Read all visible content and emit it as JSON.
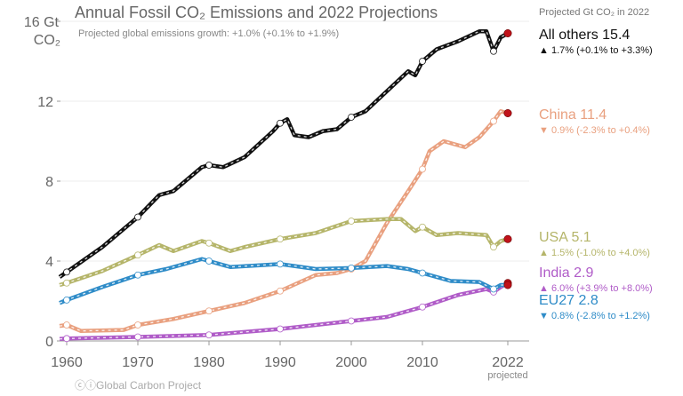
{
  "chart_data": {
    "type": "line",
    "title": "Annual Fossil CO₂ Emissions and 2022 Projections",
    "subtitle": "Projected global emissions growth: +1.0% (+0.1% to +1.9%)",
    "ylabel_line1": "Gt",
    "ylabel_line2": "CO₂",
    "legend_header": "Projected Gt CO₂ in 2022",
    "xlim": [
      1959,
      2023
    ],
    "ylim": [
      0,
      16
    ],
    "y_ticks": [
      0,
      4,
      8,
      12,
      16
    ],
    "y_tick_labels": [
      "0",
      "4",
      "8",
      "12",
      "16"
    ],
    "x_ticks": [
      1960,
      1970,
      1980,
      1990,
      2000,
      2010,
      2022
    ],
    "x_tick_labels": [
      "1960",
      "1970",
      "1980",
      "1990",
      "2000",
      "2010",
      "2022"
    ],
    "x_last_sublabel": "projected",
    "grid": "horizontal",
    "credit": "Global Carbon Project",
    "series": [
      {
        "name": "All others",
        "value_2022": "15.4",
        "direction": "up",
        "growth": "1.7% (+0.1% to +3.3%)",
        "color": "#111111",
        "x": [
          1959,
          1960,
          1965,
          1970,
          1973,
          1975,
          1979,
          1980,
          1982,
          1985,
          1989,
          1990,
          1991,
          1992,
          1994,
          1996,
          1998,
          2000,
          2002,
          2005,
          2008,
          2009,
          2010,
          2012,
          2015,
          2018,
          2019,
          2020,
          2021,
          2022
        ],
        "y": [
          3.2,
          3.45,
          4.7,
          6.2,
          7.3,
          7.5,
          8.7,
          8.8,
          8.7,
          9.2,
          10.5,
          10.9,
          11.1,
          10.3,
          10.2,
          10.5,
          10.6,
          11.2,
          11.5,
          12.5,
          13.5,
          13.3,
          14.0,
          14.6,
          15.0,
          15.5,
          15.5,
          14.5,
          15.2,
          15.4
        ]
      },
      {
        "name": "China",
        "value_2022": "11.4",
        "direction": "down",
        "growth": "0.9% (-2.3% to +0.4%)",
        "color": "#e9a07f",
        "x": [
          1959,
          1960,
          1962,
          1968,
          1970,
          1975,
          1980,
          1985,
          1990,
          1995,
          1998,
          2000,
          2002,
          2005,
          2008,
          2010,
          2011,
          2013,
          2015,
          2016,
          2018,
          2020,
          2021,
          2022
        ],
        "y": [
          0.75,
          0.8,
          0.5,
          0.55,
          0.8,
          1.1,
          1.5,
          1.9,
          2.5,
          3.3,
          3.4,
          3.6,
          4.0,
          5.9,
          7.5,
          8.6,
          9.5,
          10.0,
          9.8,
          9.7,
          10.2,
          11.0,
          11.5,
          11.4
        ]
      },
      {
        "name": "USA",
        "value_2022": "5.1",
        "direction": "up",
        "growth": "1.5% (-1.0% to +4.0%)",
        "color": "#b5b56a",
        "x": [
          1959,
          1960,
          1965,
          1970,
          1973,
          1975,
          1979,
          1980,
          1983,
          1985,
          1990,
          1995,
          2000,
          2005,
          2007,
          2009,
          2010,
          2012,
          2015,
          2019,
          2020,
          2021,
          2022
        ],
        "y": [
          2.8,
          2.9,
          3.5,
          4.3,
          4.8,
          4.5,
          5.0,
          4.9,
          4.5,
          4.7,
          5.1,
          5.4,
          6.0,
          6.1,
          6.1,
          5.5,
          5.7,
          5.3,
          5.4,
          5.3,
          4.7,
          5.0,
          5.1
        ]
      },
      {
        "name": "India",
        "value_2022": "2.9",
        "direction": "up",
        "growth": "6.0% (+3.9% to +8.0%)",
        "color": "#b05cc8",
        "x": [
          1959,
          1960,
          1970,
          1980,
          1990,
          2000,
          2005,
          2010,
          2015,
          2019,
          2020,
          2021,
          2022
        ],
        "y": [
          0.1,
          0.12,
          0.2,
          0.3,
          0.6,
          1.0,
          1.2,
          1.7,
          2.3,
          2.6,
          2.45,
          2.7,
          2.9
        ]
      },
      {
        "name": "EU27",
        "value_2022": "2.8",
        "direction": "down",
        "growth": "0.8% (-2.8% to +1.2%)",
        "color": "#2f8cc8",
        "x": [
          1959,
          1960,
          1965,
          1970,
          1974,
          1979,
          1980,
          1983,
          1990,
          1995,
          2000,
          2005,
          2008,
          2010,
          2012,
          2014,
          2018,
          2020,
          2021,
          2022
        ],
        "y": [
          1.9,
          2.05,
          2.7,
          3.3,
          3.6,
          4.1,
          4.0,
          3.7,
          3.85,
          3.6,
          3.65,
          3.75,
          3.6,
          3.4,
          3.2,
          3.0,
          2.95,
          2.6,
          2.8,
          2.8
        ]
      }
    ],
    "marker_years": [
      1960,
      1970,
      1980,
      1990,
      2000,
      2010,
      2020
    ],
    "projection_marker_color": "#c0121a"
  }
}
